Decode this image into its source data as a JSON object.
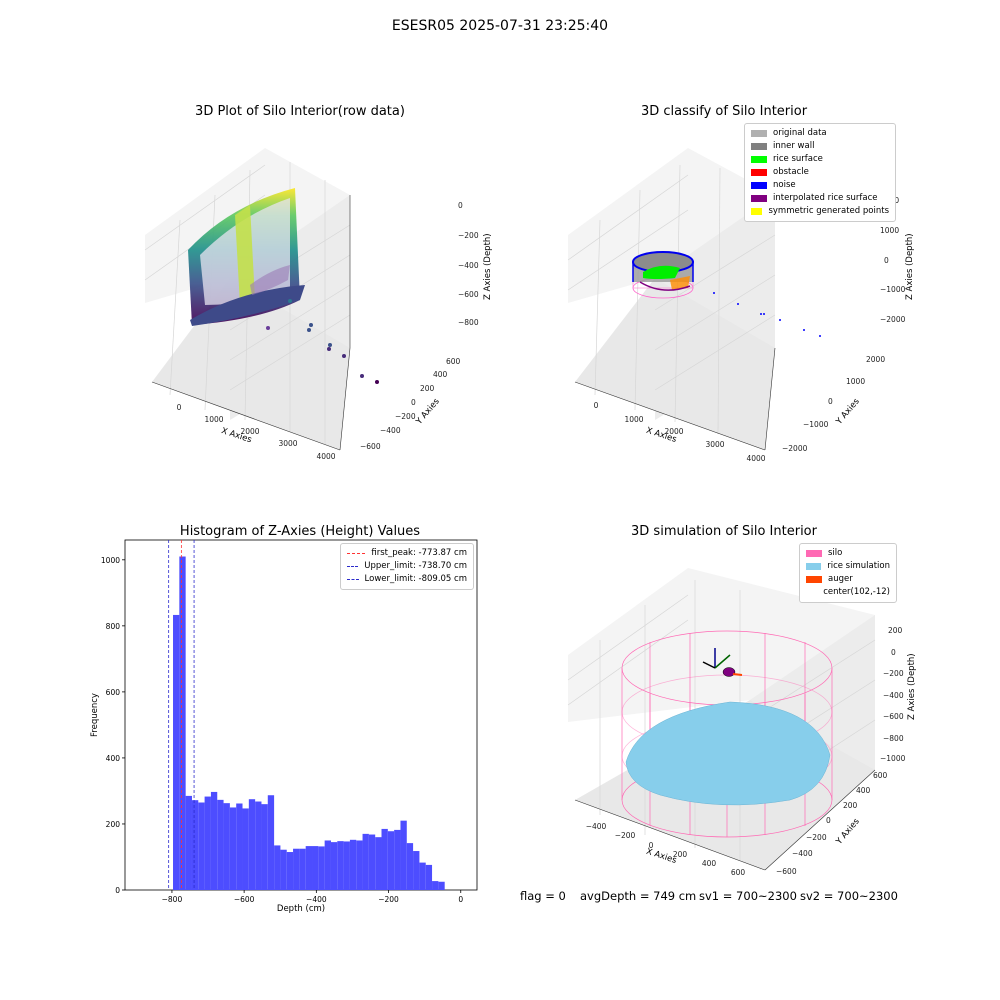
{
  "figure_title": "ESESR05 2025-07-31 23:25:40",
  "colors": {
    "axes_pane": "#f2f2f2",
    "grid": "#d8d8d8",
    "hist_bar": "#4d4dff",
    "first_peak": "#ff3333",
    "limit_line": "#2b2bcc",
    "silo": "#ff69b4",
    "rice_sim": "#87ceeb",
    "auger": "#ff4500"
  },
  "panels": [
    {
      "title": "3D Plot of Silo Interior(row data)",
      "x_axis": {
        "label": "X Axies",
        "ticks": [
          "0",
          "1000",
          "2000",
          "3000",
          "4000"
        ]
      },
      "y_axis": {
        "label": "Y Axies",
        "ticks": [
          "−600",
          "−400",
          "−200",
          "0",
          "200",
          "400",
          "600"
        ]
      },
      "z_axis": {
        "label": "Z Axies (Depth)",
        "ticks": [
          "0",
          "−200",
          "−400",
          "−600",
          "−800"
        ]
      },
      "colormap": "viridis"
    },
    {
      "title": "3D classify of Silo Interior",
      "x_axis": {
        "label": "X Axies",
        "ticks": [
          "0",
          "1000",
          "2000",
          "3000",
          "4000"
        ]
      },
      "y_axis": {
        "label": "Y Axies",
        "ticks": [
          "−2000",
          "−1000",
          "0",
          "1000",
          "2000"
        ]
      },
      "z_axis": {
        "label": "Z Axies (Depth)",
        "ticks": [
          "2000",
          "1000",
          "0",
          "−1000",
          "−2000"
        ]
      },
      "legend": [
        {
          "label": "original data",
          "color": "#b0b0b0"
        },
        {
          "label": "inner wall",
          "color": "#808080"
        },
        {
          "label": "rice surface",
          "color": "#00ff00"
        },
        {
          "label": "obstacle",
          "color": "#ff0000"
        },
        {
          "label": "noise",
          "color": "#0000ff"
        },
        {
          "label": "interpolated rice surface",
          "color": "#800080"
        },
        {
          "label": "symmetric generated points",
          "color": "#ffff00"
        }
      ]
    },
    {
      "title": "Histogram of Z-Axies (Height) Values",
      "legend": [
        {
          "label": "first_peak: -773.87 cm",
          "color": "#ff3333"
        },
        {
          "label": "Upper_limit: -738.70 cm",
          "color": "#2b2bcc"
        },
        {
          "label": "Lower_limit: -809.05 cm",
          "color": "#2b2bcc"
        }
      ]
    },
    {
      "title": "3D simulation of Silo Interior",
      "x_axis": {
        "label": "X Axies",
        "ticks": [
          "−400",
          "−200",
          "0",
          "200",
          "400",
          "600"
        ]
      },
      "y_axis": {
        "label": "Y Axies",
        "ticks": [
          "−600",
          "−400",
          "−200",
          "0",
          "200",
          "400",
          "600"
        ]
      },
      "z_axis": {
        "label": "Z Axies (Depth)",
        "ticks": [
          "200",
          "0",
          "−200",
          "−400",
          "−600",
          "−800",
          "−1000"
        ]
      },
      "legend": [
        {
          "label": "silo",
          "color": "#ff69b4"
        },
        {
          "label": "rice simulation",
          "color": "#87ceeb"
        },
        {
          "label": "auger",
          "color": "#ff4500"
        },
        {
          "label": "center(102,-12)",
          "color": ""
        }
      ]
    }
  ],
  "status_line": {
    "flag": "flag = 0",
    "avg_depth": "avgDepth = 749 cm",
    "sv1": "sv1 = 700~2300",
    "sv2": "sv2 = 700~2300"
  },
  "chart_data": {
    "type": "bar",
    "title": "Histogram of Z-Axies (Height) Values",
    "xlabel": "Depth (cm)",
    "ylabel": "Frequency",
    "xlim": [
      -930,
      45
    ],
    "ylim": [
      0,
      1060
    ],
    "xticks": [
      -800,
      -600,
      -400,
      -200,
      0
    ],
    "yticks": [
      0,
      200,
      400,
      600,
      800,
      1000
    ],
    "bin_width": 17.5,
    "bin_starts": [
      -797,
      -779.5,
      -762,
      -744.5,
      -727,
      -709.5,
      -692,
      -674.5,
      -657,
      -639.5,
      -622,
      -604.5,
      -587,
      -569.5,
      -552,
      -534.5,
      -517,
      -499.5,
      -482,
      -464.5,
      -447,
      -429.5,
      -412,
      -394.5,
      -377,
      -359.5,
      -342,
      -324.5,
      -307,
      -289.5,
      -272,
      -254.5,
      -237,
      -219.5,
      -202,
      -184.5,
      -167,
      -149.5,
      -132,
      -114.5,
      -97,
      -79.5,
      -62,
      -44.5,
      -27,
      -9.5
    ],
    "values": [
      833,
      1010,
      285,
      272,
      265,
      283,
      297,
      273,
      263,
      250,
      262,
      247,
      275,
      268,
      260,
      287,
      135,
      122,
      115,
      125,
      125,
      133,
      133,
      132,
      150,
      145,
      148,
      147,
      152,
      150,
      170,
      168,
      160,
      185,
      178,
      182,
      210,
      142,
      118,
      83,
      76,
      27,
      25,
      0,
      0,
      0
    ],
    "vlines": [
      {
        "name": "first_peak: -773.87 cm",
        "x": -773.87
      },
      {
        "name": "Upper_limit: -738.70 cm",
        "x": -738.7
      },
      {
        "name": "Lower_limit: -809.05 cm",
        "x": -809.05
      }
    ]
  }
}
